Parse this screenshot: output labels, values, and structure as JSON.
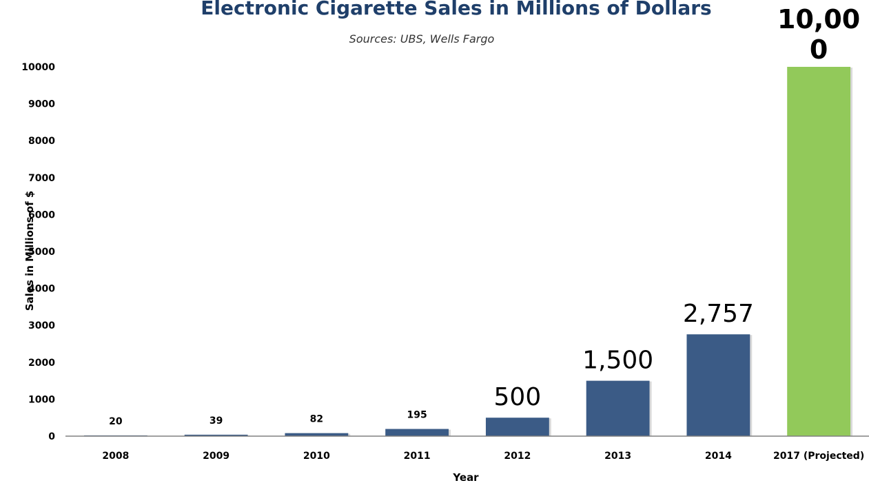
{
  "chart_data": {
    "type": "bar",
    "title": "Electronic Cigarette Sales in Millions of Dollars",
    "subtitle": "Sources: UBS, Wells Fargo",
    "xlabel": "Year",
    "ylabel": "Sales in Millions of $",
    "ylim": [
      0,
      10000
    ],
    "yticks": [
      "0",
      "1000",
      "2000",
      "3000",
      "4000",
      "5000",
      "6000",
      "7000",
      "8000",
      "9000",
      "10000"
    ],
    "grid": false,
    "categories": [
      "2008",
      "2009",
      "2010",
      "2011",
      "2012",
      "2013",
      "2014",
      "2017 (Projected)"
    ],
    "values": [
      20,
      39,
      82,
      195,
      500,
      1500,
      2757,
      10000
    ],
    "data_labels": [
      "20",
      "39",
      "82",
      "195",
      "500",
      "1,500",
      "2,757",
      "10,000"
    ],
    "colors": {
      "actual": "#3b5b86",
      "projected": "#92c95a",
      "axis": "#808080",
      "title": "#1f3f6a"
    }
  }
}
